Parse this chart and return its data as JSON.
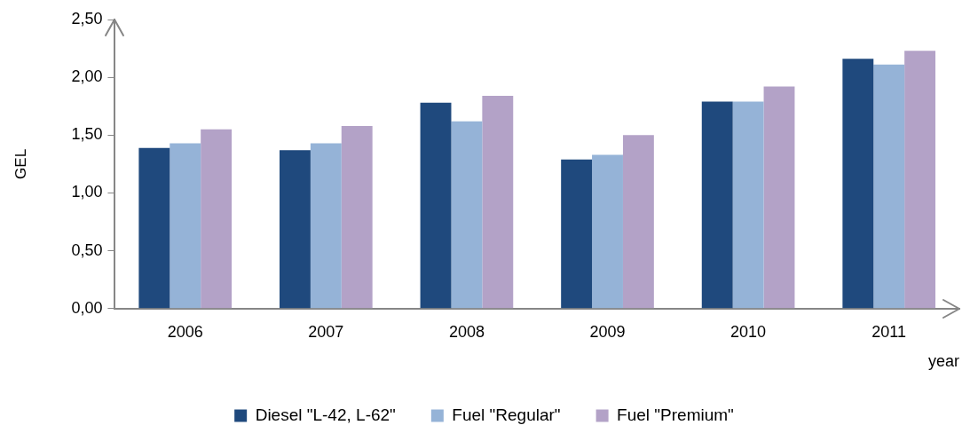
{
  "chart_data": {
    "type": "bar",
    "ylabel": "GEL",
    "xlabel": "year",
    "categories": [
      "2006",
      "2007",
      "2008",
      "2009",
      "2010",
      "2011"
    ],
    "series": [
      {
        "name": "Diesel \"L-42, L-62\"",
        "color": "#1f497d",
        "values": [
          1.39,
          1.37,
          1.78,
          1.29,
          1.79,
          2.16
        ]
      },
      {
        "name": "Fuel \"Regular\"",
        "color": "#95b3d7",
        "values": [
          1.43,
          1.43,
          1.62,
          1.33,
          1.79,
          2.11
        ]
      },
      {
        "name": "Fuel \"Premium\"",
        "color": "#b3a2c7",
        "values": [
          1.55,
          1.58,
          1.84,
          1.5,
          1.92,
          2.23
        ]
      }
    ],
    "ylim": [
      0,
      2.5
    ],
    "yticks": [
      {
        "value": 0,
        "label": "0,00"
      },
      {
        "value": 0.5,
        "label": "0,50"
      },
      {
        "value": 1,
        "label": "1,00"
      },
      {
        "value": 1.5,
        "label": "1,50"
      },
      {
        "value": 2,
        "label": "2,00"
      },
      {
        "value": 2.5,
        "label": "2,50"
      }
    ],
    "grid": false,
    "legend": "bottom"
  }
}
